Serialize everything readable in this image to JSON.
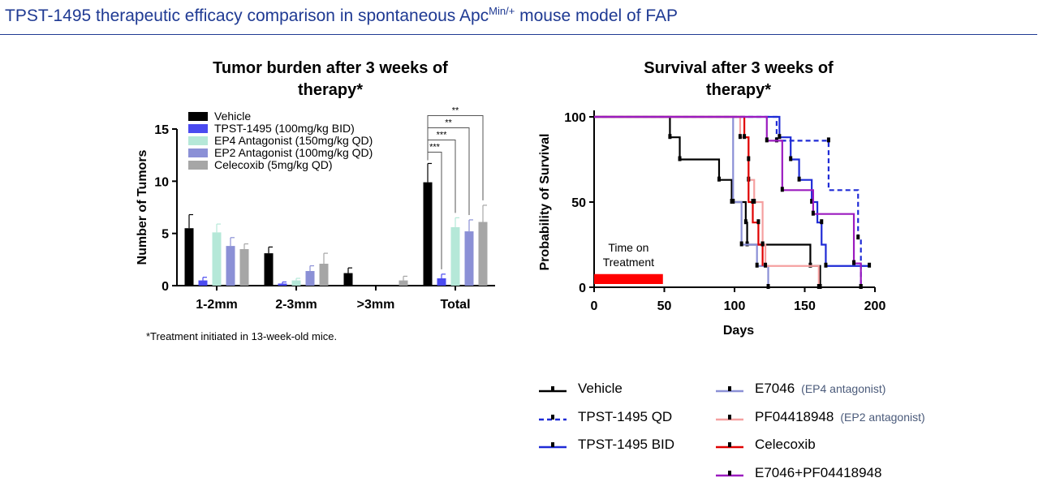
{
  "header": {
    "title_pre": "TPST-1495 therapeutic efficacy comparison in spontaneous Apc",
    "title_sup": "Min/+",
    "title_post": " mouse model of FAP"
  },
  "footnote": "*Treatment initiated in 13-week-old mice.",
  "colors": {
    "header": "#1f3a93",
    "treatment_box": "#ff0000"
  },
  "chart_data": [
    {
      "type": "bar",
      "title_lines": [
        "Tumor burden after 3 weeks of",
        "therapy*"
      ],
      "ylabel": "Number of Tumors",
      "ylim": [
        0,
        15
      ],
      "yticks": [
        0,
        5,
        10,
        15
      ],
      "categories": [
        "1-2mm",
        "2-3mm",
        ">3mm",
        "Total"
      ],
      "series": [
        {
          "name": "Vehicle",
          "color": "#000000",
          "values": [
            5.5,
            3.1,
            1.2,
            9.9
          ],
          "errors": [
            1.3,
            0.6,
            0.5,
            1.8
          ]
        },
        {
          "name": "TPST-1495 (100mg/kg BID)",
          "color": "#4b4bf0",
          "values": [
            0.5,
            0.2,
            0.0,
            0.7
          ],
          "errors": [
            0.3,
            0.15,
            0.0,
            0.4
          ]
        },
        {
          "name": "EP4 Antagonist (150mg/kg QD)",
          "color": "#b5e8d8",
          "values": [
            5.1,
            0.5,
            0.0,
            5.6
          ],
          "errors": [
            0.8,
            0.2,
            0.0,
            0.9
          ]
        },
        {
          "name": "EP2 Antagonist (100mg/kg QD)",
          "color": "#8b90d6",
          "values": [
            3.8,
            1.4,
            0.0,
            5.2
          ],
          "errors": [
            0.8,
            0.5,
            0.0,
            1.1
          ]
        },
        {
          "name": "Celecoxib (5mg/kg QD)",
          "color": "#a6a6a6",
          "values": [
            3.5,
            2.1,
            0.5,
            6.1
          ],
          "errors": [
            0.5,
            1.0,
            0.4,
            1.6
          ]
        }
      ],
      "significance": [
        {
          "label": "***",
          "to_series": 1
        },
        {
          "label": "***",
          "to_series": 2
        },
        {
          "label": "**",
          "to_series": 3
        },
        {
          "label": "**",
          "to_series": 4
        }
      ]
    },
    {
      "type": "line",
      "subtype": "kaplan-meier",
      "title_lines": [
        "Survival after 3 weeks of",
        "therapy*"
      ],
      "xlabel": "Days",
      "ylabel": "Probability of Survival",
      "xlim": [
        0,
        200
      ],
      "ylim": [
        0,
        100
      ],
      "xticks": [
        0,
        50,
        100,
        150,
        200
      ],
      "yticks": [
        0,
        50,
        100
      ],
      "treatment_label_lines": [
        "Time on",
        "Treatment"
      ],
      "treatment_days": [
        0,
        49
      ],
      "series": [
        {
          "name": "Vehicle",
          "note": "",
          "color": "#000000",
          "dash": false,
          "steps": [
            [
              0,
              100
            ],
            [
              54,
              100
            ],
            [
              54,
              88
            ],
            [
              61,
              88
            ],
            [
              61,
              75
            ],
            [
              89,
              75
            ],
            [
              89,
              63
            ],
            [
              98,
              63
            ],
            [
              98,
              50
            ],
            [
              108,
              50
            ],
            [
              108,
              38
            ],
            [
              109,
              38
            ],
            [
              109,
              25
            ],
            [
              154,
              25
            ],
            [
              154,
              12.5
            ],
            [
              161,
              12.5
            ],
            [
              161,
              0
            ]
          ],
          "censors": [
            [
              54,
              88
            ],
            [
              61,
              75
            ],
            [
              89,
              63
            ],
            [
              98,
              50
            ],
            [
              108,
              38
            ],
            [
              109,
              25
            ],
            [
              154,
              12.5
            ],
            [
              161,
              0
            ]
          ]
        },
        {
          "name": "TPST-1495 QD",
          "note": "",
          "color": "#1f2bd6",
          "dash": true,
          "steps": [
            [
              0,
              100
            ],
            [
              130,
              100
            ],
            [
              130,
              86
            ],
            [
              167,
              86
            ],
            [
              167,
              57
            ],
            [
              188,
              57
            ],
            [
              188,
              29
            ],
            [
              190,
              29
            ],
            [
              190,
              0
            ]
          ],
          "censors": [
            [
              130,
              86
            ],
            [
              167,
              86
            ],
            [
              188,
              29
            ],
            [
              190,
              0
            ]
          ]
        },
        {
          "name": "TPST-1495 BID",
          "note": "",
          "color": "#1f2bd6",
          "dash": false,
          "steps": [
            [
              0,
              100
            ],
            [
              132,
              100
            ],
            [
              132,
              88
            ],
            [
              140,
              88
            ],
            [
              140,
              75
            ],
            [
              146,
              75
            ],
            [
              146,
              63
            ],
            [
              155,
              63
            ],
            [
              155,
              50
            ],
            [
              159,
              50
            ],
            [
              159,
              38
            ],
            [
              162,
              38
            ],
            [
              162,
              25
            ],
            [
              165,
              25
            ],
            [
              165,
              12.5
            ],
            [
              196,
              12.5
            ]
          ],
          "censors": [
            [
              132,
              88
            ],
            [
              140,
              75
            ],
            [
              146,
              63
            ],
            [
              155,
              50
            ],
            [
              162,
              38
            ],
            [
              165,
              12.5
            ],
            [
              196,
              12.5
            ]
          ]
        },
        {
          "name": "E7046",
          "note": "(EP4 antagonist)",
          "color": "#8b90d6",
          "dash": false,
          "steps": [
            [
              0,
              100
            ],
            [
              99,
              100
            ],
            [
              99,
              50
            ],
            [
              105,
              50
            ],
            [
              105,
              25
            ],
            [
              116,
              25
            ],
            [
              116,
              12.5
            ],
            [
              124,
              12.5
            ],
            [
              124,
              0
            ]
          ],
          "censors": [
            [
              99,
              50
            ],
            [
              105,
              25
            ],
            [
              116,
              12.5
            ],
            [
              124,
              0
            ]
          ]
        },
        {
          "name": "PF04418948",
          "note": "(EP2 antagonist)",
          "color": "#f5a0a0",
          "dash": false,
          "steps": [
            [
              0,
              100
            ],
            [
              104,
              100
            ],
            [
              104,
              88
            ],
            [
              110,
              88
            ],
            [
              110,
              63
            ],
            [
              114,
              63
            ],
            [
              114,
              50
            ],
            [
              120,
              50
            ],
            [
              120,
              25
            ],
            [
              122,
              25
            ],
            [
              122,
              12.5
            ],
            [
              160,
              12.5
            ],
            [
              160,
              0
            ]
          ],
          "censors": [
            [
              104,
              88
            ],
            [
              110,
              63
            ],
            [
              114,
              50
            ],
            [
              120,
              25
            ],
            [
              122,
              12.5
            ],
            [
              160,
              0
            ]
          ]
        },
        {
          "name": "Celecoxib",
          "note": "",
          "color": "#e00000",
          "dash": false,
          "steps": [
            [
              0,
              100
            ],
            [
              107,
              100
            ],
            [
              107,
              88
            ],
            [
              110,
              88
            ],
            [
              110,
              50
            ],
            [
              113,
              50
            ],
            [
              113,
              38
            ],
            [
              117,
              38
            ],
            [
              117,
              25
            ],
            [
              120,
              25
            ],
            [
              120,
              12.5
            ]
          ],
          "censors": [
            [
              107,
              88
            ],
            [
              110,
              75
            ],
            [
              113,
              50
            ],
            [
              117,
              38
            ],
            [
              120,
              25
            ]
          ]
        },
        {
          "name": "E7046+PF04418948",
          "note": "",
          "color": "#9b1bbf",
          "dash": false,
          "steps": [
            [
              0,
              100
            ],
            [
              123,
              100
            ],
            [
              123,
              86
            ],
            [
              134,
              86
            ],
            [
              134,
              57
            ],
            [
              156,
              57
            ],
            [
              156,
              43
            ],
            [
              185,
              43
            ],
            [
              185,
              14
            ],
            [
              190,
              14
            ],
            [
              190,
              0
            ]
          ],
          "censors": [
            [
              123,
              86
            ],
            [
              134,
              57
            ],
            [
              156,
              43
            ],
            [
              185,
              14
            ],
            [
              190,
              0
            ]
          ]
        }
      ]
    }
  ]
}
